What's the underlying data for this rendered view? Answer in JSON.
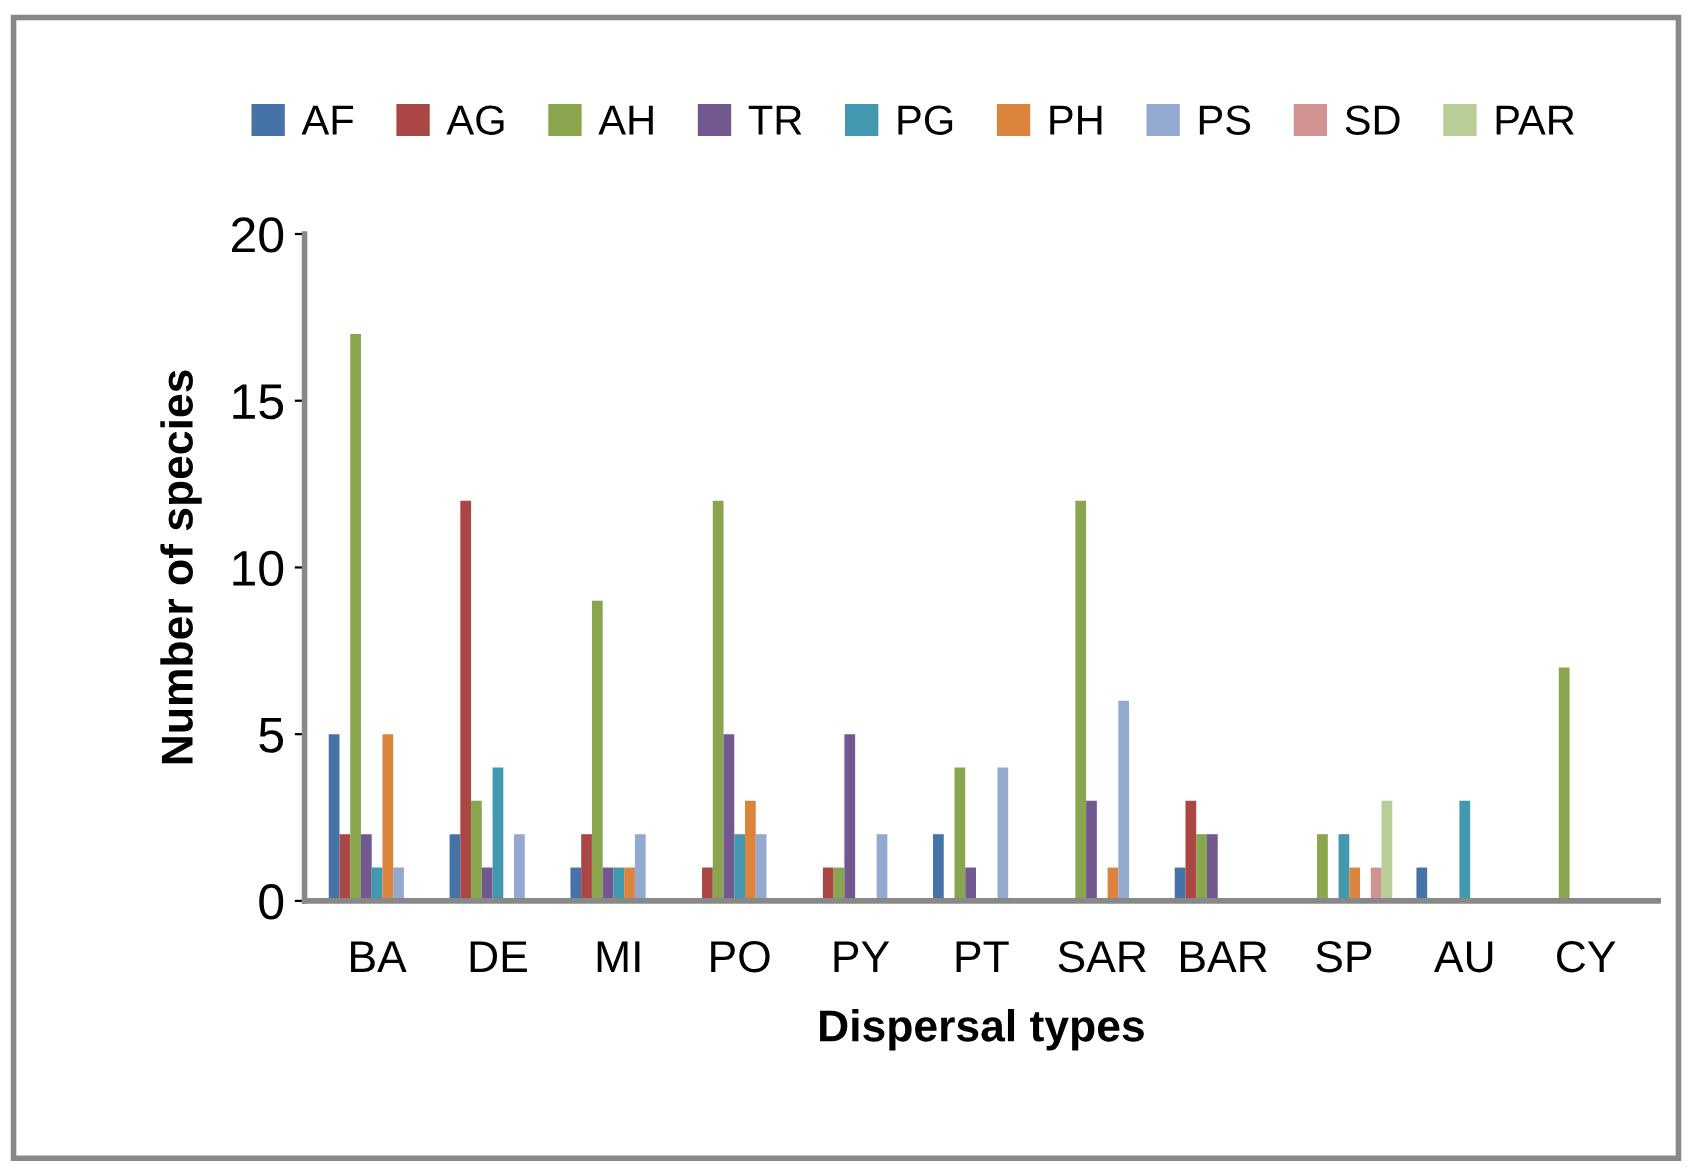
{
  "chart_data": {
    "type": "bar",
    "xlabel": "Dispersal types",
    "ylabel": "Number of species",
    "categories": [
      "BA",
      "DE",
      "MI",
      "PO",
      "PY",
      "PT",
      "SAR",
      "BAR",
      "SP",
      "AU",
      "CY"
    ],
    "series": [
      {
        "name": "AF",
        "color": "#4572a7",
        "values": [
          5,
          2,
          1,
          0,
          0,
          2,
          0,
          1,
          0,
          1,
          0
        ]
      },
      {
        "name": "AG",
        "color": "#aa4643",
        "values": [
          2,
          12,
          2,
          1,
          1,
          0,
          0,
          3,
          0,
          0,
          0
        ]
      },
      {
        "name": "AH",
        "color": "#89a54e",
        "values": [
          17,
          3,
          9,
          12,
          1,
          4,
          12,
          2,
          2,
          0,
          7
        ]
      },
      {
        "name": "TR",
        "color": "#71588f",
        "values": [
          2,
          1,
          1,
          5,
          5,
          1,
          3,
          2,
          0,
          0,
          0
        ]
      },
      {
        "name": "PG",
        "color": "#4198af",
        "values": [
          1,
          4,
          1,
          2,
          0,
          0,
          0,
          0,
          2,
          3,
          0
        ]
      },
      {
        "name": "PH",
        "color": "#db843d",
        "values": [
          5,
          0,
          1,
          3,
          0,
          0,
          1,
          0,
          1,
          0,
          0
        ]
      },
      {
        "name": "PS",
        "color": "#93a9cf",
        "values": [
          1,
          2,
          2,
          2,
          2,
          4,
          6,
          0,
          0,
          0,
          0
        ]
      },
      {
        "name": "SD",
        "color": "#d19392",
        "values": [
          0,
          0,
          0,
          0,
          0,
          0,
          0,
          0,
          1,
          0,
          0
        ]
      },
      {
        "name": "PAR",
        "color": "#b9cd96",
        "values": [
          0,
          0,
          0,
          0,
          0,
          0,
          0,
          0,
          3,
          0,
          0
        ]
      }
    ],
    "ylim": [
      0,
      20
    ],
    "yticks": [
      0,
      5,
      10,
      15,
      20
    ],
    "grid": false,
    "legend": "top"
  }
}
